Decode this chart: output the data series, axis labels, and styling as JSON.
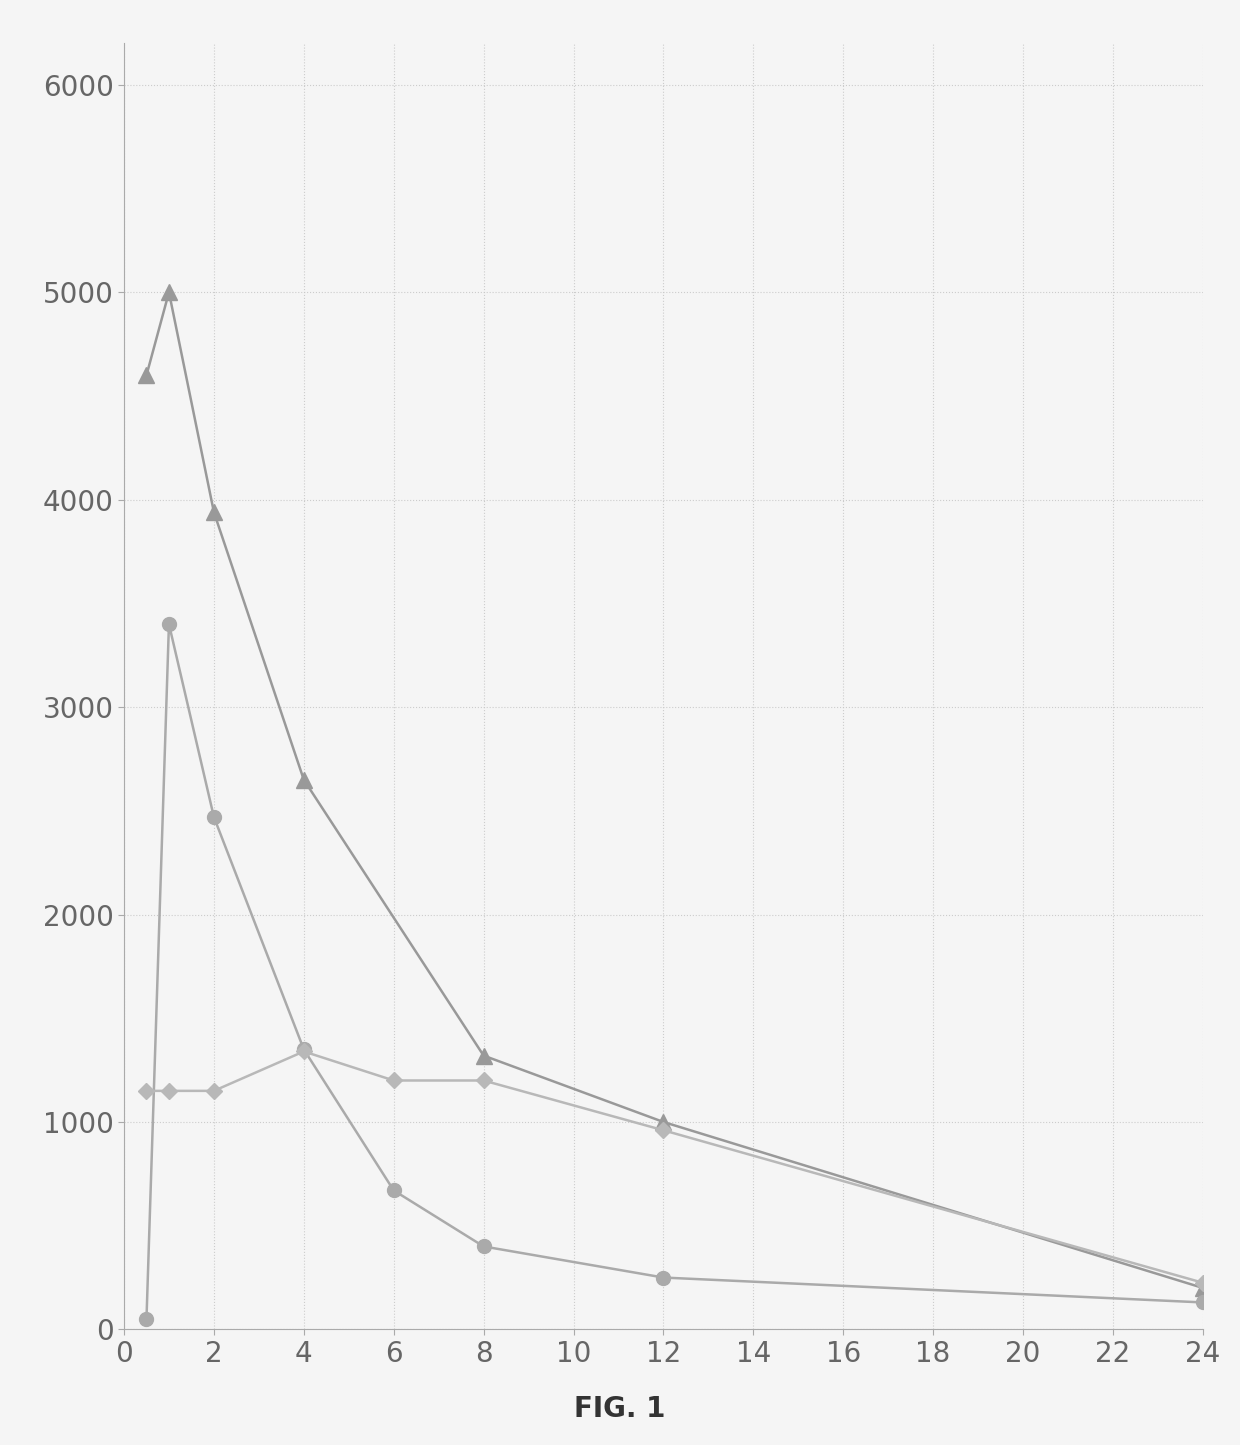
{
  "series": [
    {
      "name": "series1_triangle",
      "x": [
        0.5,
        1,
        2,
        4,
        8,
        12,
        24
      ],
      "y": [
        4600,
        5000,
        3940,
        2650,
        1320,
        1000,
        200
      ],
      "color": "#999999",
      "marker": "^",
      "markersize": 11,
      "linewidth": 1.8
    },
    {
      "name": "series2_circle",
      "x": [
        0.5,
        1,
        2,
        4,
        6,
        8,
        12,
        24
      ],
      "y": [
        50,
        3400,
        2470,
        1350,
        670,
        400,
        250,
        130
      ],
      "color": "#aaaaaa",
      "marker": "o",
      "markersize": 10,
      "linewidth": 1.8
    },
    {
      "name": "series3_diamond",
      "x": [
        0.5,
        1,
        2,
        4,
        6,
        8,
        12,
        24
      ],
      "y": [
        1150,
        1150,
        1150,
        1340,
        1200,
        1200,
        960,
        225
      ],
      "color": "#b8b8b8",
      "marker": "D",
      "markersize": 8,
      "linewidth": 1.8
    }
  ],
  "xlim": [
    0,
    24
  ],
  "ylim": [
    0,
    6200
  ],
  "xticks": [
    0,
    2,
    4,
    6,
    8,
    10,
    12,
    14,
    16,
    18,
    20,
    22,
    24
  ],
  "yticks": [
    0,
    1000,
    2000,
    3000,
    4000,
    5000,
    6000
  ],
  "xlabel": "",
  "ylabel": "",
  "title": "",
  "caption": "FIG. 1",
  "background_color": "#f5f5f5",
  "grid_color": "#c8c8c8",
  "grid_style": ":",
  "grid_alpha": 0.9,
  "spine_color": "#aaaaaa",
  "tick_color": "#666666",
  "tick_labelsize": 20
}
